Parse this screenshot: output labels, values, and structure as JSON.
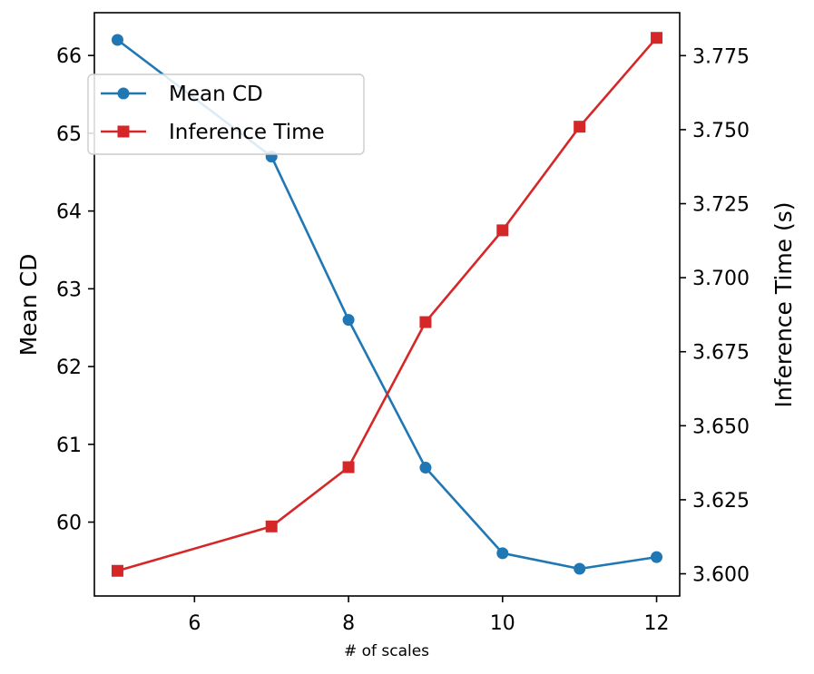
{
  "chart_data": {
    "type": "line",
    "xlabel": "# of scales",
    "ylabel_left": "Mean CD",
    "ylabel_right": "Inference Time (s)",
    "x": [
      5,
      7,
      8,
      9,
      10,
      11,
      12
    ],
    "xlim": [
      4.7,
      12.3
    ],
    "x_ticks": [
      6,
      8,
      10,
      12
    ],
    "ylim_left": [
      59.05,
      66.55
    ],
    "y_ticks_left": [
      60,
      61,
      62,
      63,
      64,
      65,
      66
    ],
    "ylim_right": [
      3.5925,
      3.7895
    ],
    "y_ticks_right": [
      "3.600",
      "3.625",
      "3.650",
      "3.675",
      "3.700",
      "3.725",
      "3.750",
      "3.775"
    ],
    "grid": false,
    "legend_position": "upper-left",
    "series": [
      {
        "name": "Mean CD",
        "axis": "left",
        "marker": "circle",
        "color": "#1f77b4",
        "values": [
          66.2,
          64.7,
          62.6,
          60.7,
          59.6,
          59.4,
          59.55
        ]
      },
      {
        "name": "Inference Time",
        "axis": "right",
        "marker": "square",
        "color": "#d62728",
        "values": [
          3.601,
          3.616,
          3.636,
          3.685,
          3.716,
          3.751,
          3.781
        ]
      }
    ]
  }
}
